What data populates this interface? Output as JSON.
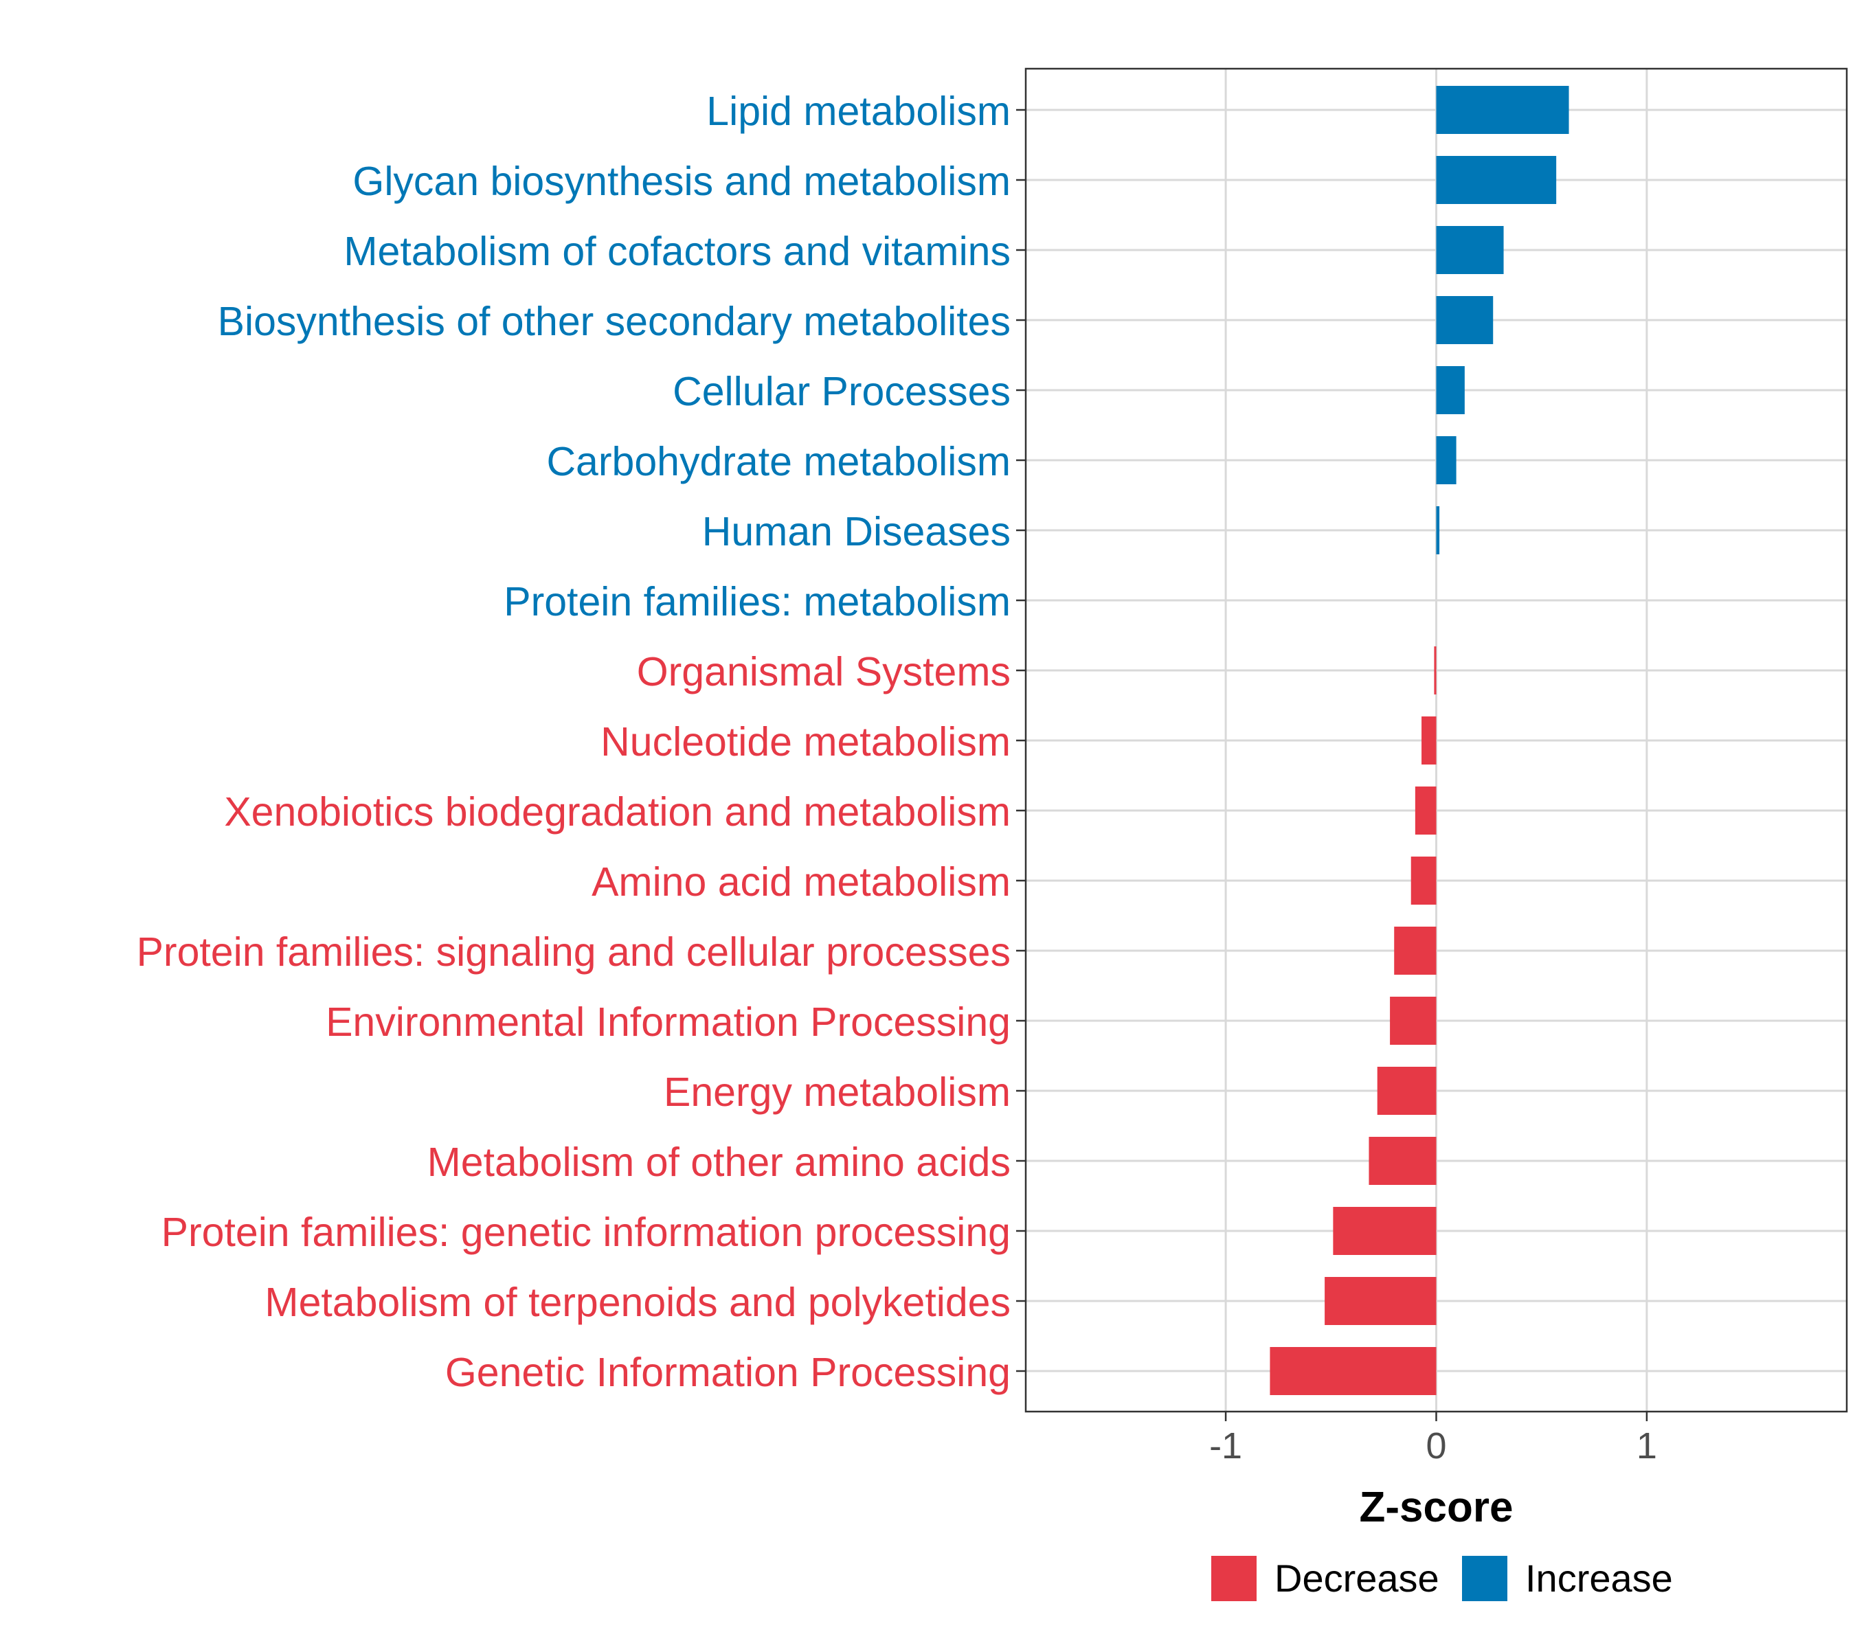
{
  "colors": {
    "increase": "#0077B6",
    "decrease": "#E63946",
    "grid": "#d9d9d9",
    "axis_text": "#4d4d4d",
    "panel_border": "#333333"
  },
  "chart_data": {
    "type": "bar",
    "orientation": "horizontal",
    "title": "",
    "xlabel": "Z-score",
    "ylabel": "",
    "xlim": [
      -1.95,
      1.95
    ],
    "xticks": [
      -1,
      0,
      1
    ],
    "xtick_labels": [
      "-1",
      "0",
      "1"
    ],
    "grid": true,
    "legend_position": "bottom",
    "legend": [
      {
        "key": "decrease",
        "label": "Decrease"
      },
      {
        "key": "increase",
        "label": "Increase"
      }
    ],
    "categories": [
      "Lipid metabolism",
      "Glycan biosynthesis and metabolism",
      "Metabolism of cofactors and vitamins",
      "Biosynthesis of other secondary metabolites",
      "Cellular Processes",
      "Carbohydrate metabolism",
      "Human Diseases",
      "Protein families: metabolism",
      "Organismal Systems",
      "Nucleotide metabolism",
      "Xenobiotics biodegradation and metabolism",
      "Amino acid metabolism",
      "Protein families: signaling and cellular processes",
      "Environmental Information Processing",
      "Energy metabolism",
      "Metabolism of other amino acids",
      "Protein families: genetic information processing",
      "Metabolism of terpenoids and polyketides",
      "Genetic Information Processing"
    ],
    "values": [
      0.63,
      0.57,
      0.32,
      0.27,
      0.135,
      0.095,
      0.015,
      0.0,
      -0.01,
      -0.07,
      -0.1,
      -0.12,
      -0.2,
      -0.22,
      -0.28,
      -0.32,
      -0.49,
      -0.53,
      -0.79
    ],
    "groups": [
      "increase",
      "increase",
      "increase",
      "increase",
      "increase",
      "increase",
      "increase",
      "increase",
      "decrease",
      "decrease",
      "decrease",
      "decrease",
      "decrease",
      "decrease",
      "decrease",
      "decrease",
      "decrease",
      "decrease",
      "decrease"
    ]
  }
}
